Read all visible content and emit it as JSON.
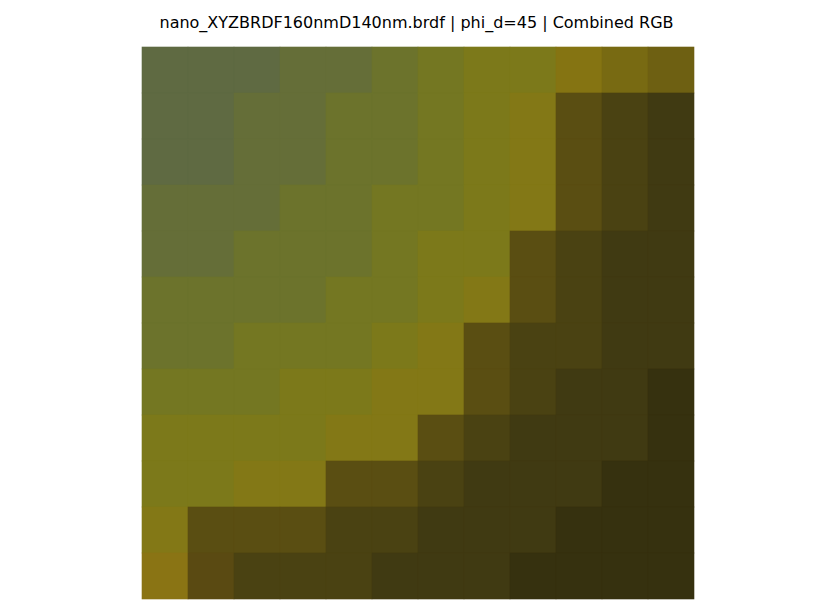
{
  "chart_data": {
    "type": "image",
    "title": "nano_XYZBRDF160nmD140nm.brdf | phi_d=45 | Combined RGB",
    "tick_labels": false,
    "cells": [
      [
        "#5f6a42",
        "#5f6a42",
        "#5f6a42",
        "#656e38",
        "#656e38",
        "#6c732c",
        "#747722",
        "#7c791a",
        "#7c791a",
        "#857412",
        "#786a12",
        "#6e6012"
      ],
      [
        "#5f6a42",
        "#5f6a42",
        "#656e38",
        "#656e38",
        "#6c732c",
        "#6c732c",
        "#747722",
        "#7c791a",
        "#837816",
        "#5a4e12",
        "#4a4212",
        "#403a12"
      ],
      [
        "#5f6a42",
        "#5f6a42",
        "#656e38",
        "#656e38",
        "#6c732c",
        "#6c732c",
        "#747722",
        "#7c791a",
        "#837816",
        "#5a4e12",
        "#4a4212",
        "#403a12"
      ],
      [
        "#656e38",
        "#656e38",
        "#656e38",
        "#6c732c",
        "#6c732c",
        "#747722",
        "#747722",
        "#7c791a",
        "#837816",
        "#5a4e12",
        "#4a4212",
        "#403a12"
      ],
      [
        "#656e38",
        "#656e38",
        "#6c732c",
        "#6c732c",
        "#6c732c",
        "#747722",
        "#7c791a",
        "#7c791a",
        "#5a4e12",
        "#4a4212",
        "#403a12",
        "#403a12"
      ],
      [
        "#6c732c",
        "#6c732c",
        "#6c732c",
        "#6c732c",
        "#747722",
        "#747722",
        "#7c791a",
        "#837816",
        "#5a4e12",
        "#4a4212",
        "#403a12",
        "#403a12"
      ],
      [
        "#6c732c",
        "#6c732c",
        "#747722",
        "#747722",
        "#747722",
        "#7c791a",
        "#837816",
        "#5a4e12",
        "#4a4212",
        "#4a4212",
        "#403a12",
        "#403a12"
      ],
      [
        "#747722",
        "#747722",
        "#747722",
        "#7c791a",
        "#7c791a",
        "#837816",
        "#837816",
        "#5a4e12",
        "#4a4212",
        "#403a12",
        "#403a12",
        "#36310f"
      ],
      [
        "#7c791a",
        "#7c791a",
        "#7c791a",
        "#7c791a",
        "#837816",
        "#837816",
        "#5a4e12",
        "#4a4212",
        "#403a12",
        "#403a12",
        "#403a12",
        "#36310f"
      ],
      [
        "#7c791a",
        "#7c791a",
        "#837816",
        "#837816",
        "#5a4e12",
        "#5a4e12",
        "#4a4212",
        "#403a12",
        "#403a12",
        "#403a12",
        "#36310f",
        "#36310f"
      ],
      [
        "#837816",
        "#5a4e12",
        "#5a4e12",
        "#5a4e12",
        "#4a4212",
        "#4a4212",
        "#403a12",
        "#403a12",
        "#403a12",
        "#36310f",
        "#36310f",
        "#36310f"
      ],
      [
        "#8a7414",
        "#5a4a12",
        "#4a4212",
        "#4a4212",
        "#4a4212",
        "#403a12",
        "#403a12",
        "#403a12",
        "#36310f",
        "#36310f",
        "#36310f",
        "#36310f"
      ]
    ]
  }
}
